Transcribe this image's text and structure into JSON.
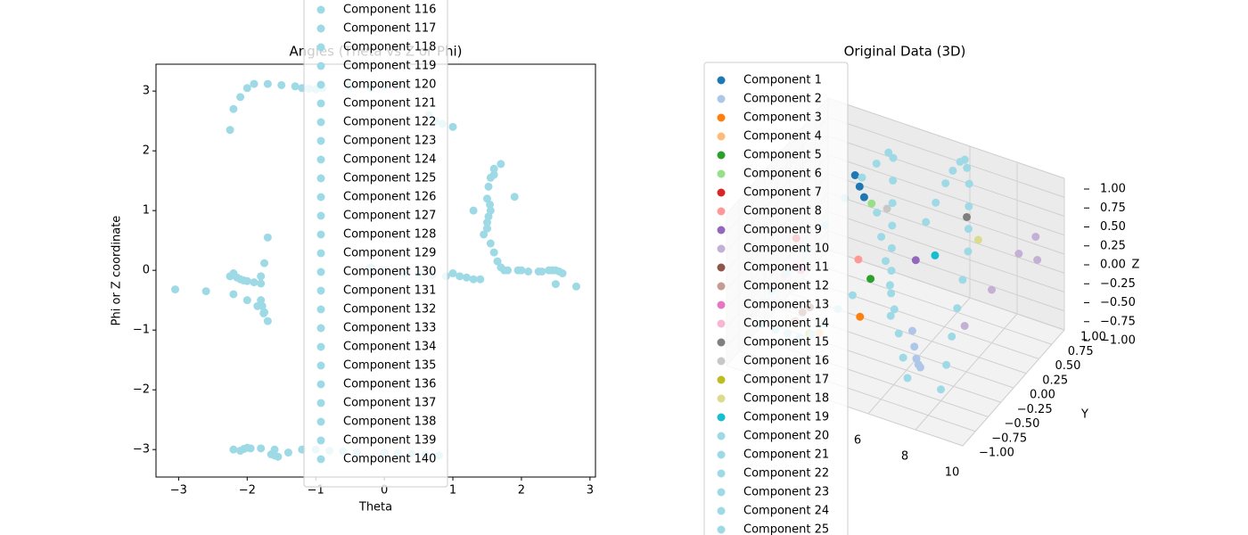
{
  "chart_data": [
    {
      "type": "scatter",
      "title": "Angles (Theta vs Z or Phi)",
      "x_label": "Theta",
      "y_label": "Phi or Z coordinate",
      "xlim": [
        -3.33,
        3.08
      ],
      "ylim": [
        -3.46,
        3.45
      ],
      "xticks": [
        {
          "value": -3,
          "label": "−3"
        },
        {
          "value": -2,
          "label": "−2"
        },
        {
          "value": -1,
          "label": "−1"
        },
        0,
        1,
        2,
        3
      ],
      "yticks": [
        {
          "value": -3,
          "label": "−3"
        },
        {
          "value": -2,
          "label": "−2"
        },
        {
          "value": -1,
          "label": "−1"
        },
        0,
        1,
        2,
        3
      ],
      "legend": "center",
      "series": [
        {
          "name": "Component 116",
          "color": "#9edae5",
          "x": [
            -2.25,
            -2.2,
            -2.1,
            -2.0,
            -1.9
          ],
          "values": [
            2.35,
            2.7,
            2.9,
            3.05,
            3.12
          ]
        },
        {
          "name": "Component 117",
          "color": "#9edae5",
          "x": [
            -1.7,
            -1.5,
            -1.3,
            -1.2,
            -0.5
          ],
          "values": [
            3.12,
            3.1,
            3.08,
            3.05,
            3.08
          ]
        },
        {
          "name": "Component 118",
          "color": "#9edae5",
          "x": [
            -2.2,
            -2.0,
            -1.8,
            -1.6,
            -1.4
          ],
          "values": [
            -3.0,
            -2.97,
            -2.98,
            -3.0,
            -3.05
          ]
        },
        {
          "name": "Component 119",
          "color": "#9edae5",
          "x": [
            -1.2,
            -1.0,
            -0.8,
            -0.6,
            -0.4
          ],
          "values": [
            -3.0,
            -3.0,
            -3.02,
            -3.03,
            -3.05
          ]
        },
        {
          "name": "Component 120",
          "color": "#9edae5",
          "x": [
            0.0,
            0.2,
            0.4,
            0.6,
            0.8
          ],
          "values": [
            -3.05,
            -3.06,
            -3.07,
            -3.08,
            -3.1
          ]
        },
        {
          "name": "Component 121",
          "color": "#9edae5",
          "x": [
            -2.25,
            -2.1,
            -2.0,
            -1.9,
            -1.8
          ],
          "values": [
            -0.1,
            -0.15,
            -0.18,
            -0.2,
            -0.22
          ]
        },
        {
          "name": "Component 122",
          "color": "#9edae5",
          "x": [
            -2.2,
            -2.0,
            -1.85,
            -1.75,
            -1.7
          ],
          "values": [
            -0.4,
            -0.5,
            -0.6,
            -0.7,
            -0.85
          ]
        },
        {
          "name": "Component 123",
          "color": "#9edae5",
          "x": [
            -3.05,
            -2.6,
            -1.7,
            -1.75,
            -1.8
          ],
          "values": [
            -0.32,
            -0.35,
            0.55,
            0.12,
            -0.1
          ]
        },
        {
          "name": "Component 124",
          "color": "#9edae5",
          "x": [
            1.5,
            1.52,
            1.55,
            1.6,
            1.7
          ],
          "values": [
            1.2,
            1.4,
            1.55,
            1.7,
            1.78
          ]
        },
        {
          "name": "Component 125",
          "color": "#9edae5",
          "x": [
            1.45,
            1.5,
            1.55,
            1.6,
            1.9
          ],
          "values": [
            0.6,
            0.8,
            1.0,
            1.6,
            1.23
          ]
        },
        {
          "name": "Component 126",
          "color": "#9edae5",
          "x": [
            1.55,
            1.6,
            1.65,
            1.7,
            1.75
          ],
          "values": [
            0.45,
            0.3,
            0.15,
            0.05,
            0.0
          ]
        },
        {
          "name": "Component 127",
          "color": "#9edae5",
          "x": [
            1.8,
            1.95,
            2.1,
            2.25,
            2.4
          ],
          "values": [
            0.0,
            0.0,
            -0.02,
            -0.02,
            0.0
          ]
        },
        {
          "name": "Component 128",
          "color": "#9edae5",
          "x": [
            2.45,
            2.5,
            2.55,
            2.6,
            2.8
          ],
          "values": [
            0.0,
            0.0,
            -0.02,
            -0.05,
            -0.27
          ]
        },
        {
          "name": "Component 129",
          "color": "#9edae5",
          "x": [
            1.0,
            1.1,
            1.2,
            1.3,
            1.4
          ],
          "values": [
            -0.05,
            -0.1,
            -0.12,
            -0.15,
            -0.15
          ]
        },
        {
          "name": "Component 130",
          "color": "#9edae5",
          "x": [
            0.65,
            0.75,
            0.85,
            1.0,
            1.3
          ],
          "values": [
            2.6,
            2.5,
            2.45,
            2.4,
            1.0
          ]
        },
        {
          "name": "Component 131",
          "color": "#9edae5",
          "x": [
            -0.2,
            0.0,
            0.2
          ],
          "values": [
            3.05,
            3.08,
            3.1
          ]
        },
        {
          "name": "Component 132",
          "color": "#9edae5",
          "x": [
            -1.1,
            -1.0,
            -0.9
          ],
          "values": [
            3.04,
            3.03,
            3.05
          ]
        },
        {
          "name": "Component 133",
          "color": "#9edae5",
          "x": [
            -1.65,
            -1.6,
            -1.55
          ],
          "values": [
            -3.08,
            -3.1,
            -3.12
          ]
        },
        {
          "name": "Component 134",
          "color": "#9edae5",
          "x": [
            -2.1,
            -2.05,
            -1.95
          ],
          "values": [
            -3.02,
            -2.99,
            -2.98
          ]
        },
        {
          "name": "Component 135",
          "color": "#9edae5",
          "x": [
            -2.2,
            -2.15,
            -2.05
          ],
          "values": [
            -0.05,
            -0.12,
            -0.17
          ]
        },
        {
          "name": "Component 136",
          "color": "#9edae5",
          "x": [
            -1.8,
            -1.78,
            -1.76
          ],
          "values": [
            -0.5,
            -0.6,
            -0.72
          ]
        },
        {
          "name": "Component 137",
          "color": "#9edae5",
          "x": [
            1.5,
            1.52,
            1.54
          ],
          "values": [
            0.7,
            0.9,
            1.1
          ]
        },
        {
          "name": "Component 138",
          "color": "#9edae5",
          "x": [
            2.0,
            2.3,
            2.5
          ],
          "values": [
            0.0,
            -0.02,
            -0.23
          ]
        },
        {
          "name": "Component 139",
          "color": "#9edae5",
          "x": [
            0.5,
            0.7,
            0.9
          ],
          "values": [
            -0.05,
            -0.08,
            -0.1
          ]
        },
        {
          "name": "Component 140",
          "color": "#9edae5",
          "x": [
            -0.2,
            0.0,
            0.3
          ],
          "values": [
            0.05,
            0.0,
            -0.05
          ]
        }
      ]
    },
    {
      "type": "scatter3d",
      "title": "Original Data (3D)",
      "y_label": "Y",
      "z_label": "Z",
      "xlim": [
        0,
        10
      ],
      "ylim": [
        -1,
        1
      ],
      "zlim": [
        -1,
        1
      ],
      "xticks": [
        6,
        8,
        10
      ],
      "yticks": [
        {
          "value": -1,
          "label": "−1.00"
        },
        {
          "value": -0.75,
          "label": "−0.75"
        },
        {
          "value": -0.5,
          "label": "−0.50"
        },
        {
          "value": -0.25,
          "label": "−0.25"
        },
        {
          "value": 0,
          "label": "0.00"
        },
        {
          "value": 0.25,
          "label": "0.25"
        },
        {
          "value": 0.5,
          "label": "0.50"
        },
        {
          "value": 0.75,
          "label": "0.75"
        },
        {
          "value": 1,
          "label": "1.00"
        }
      ],
      "zticks": [
        {
          "value": -1,
          "label": "−1.00"
        },
        {
          "value": -0.75,
          "label": "−0.75"
        },
        {
          "value": -0.5,
          "label": "−0.50"
        },
        {
          "value": -0.25,
          "label": "−0.25"
        },
        {
          "value": 0,
          "label": "0.00"
        },
        {
          "value": 0.25,
          "label": "0.25"
        },
        {
          "value": 0.5,
          "label": "0.50"
        },
        {
          "value": 0.75,
          "label": "0.75"
        },
        {
          "value": 1,
          "label": "1.00"
        }
      ],
      "legend": "upper left",
      "series": [
        {
          "name": "Component 1",
          "color": "#1f77b4",
          "x": [
            2.0,
            2.3,
            2.6
          ],
          "y": [
            0.6,
            0.55,
            0.5
          ],
          "values": [
            0.5,
            0.42,
            0.35
          ]
        },
        {
          "name": "Component 2",
          "color": "#aec7e8",
          "x": [
            5.5,
            5.8,
            6.1,
            6.4,
            6.7
          ],
          "y": [
            0.1,
            0.0,
            -0.1,
            -0.2,
            -0.3
          ],
          "values": [
            -0.8,
            -0.9,
            -0.95,
            -0.92,
            -0.85
          ]
        },
        {
          "name": "Component 3",
          "color": "#ff7f0e",
          "x": [
            3.5
          ],
          "y": [
            0.0
          ],
          "values": [
            -0.75
          ]
        },
        {
          "name": "Component 4",
          "color": "#ffbb78",
          "x": [
            2.2
          ],
          "y": [
            -0.2
          ],
          "values": [
            -0.95
          ]
        },
        {
          "name": "Component 5",
          "color": "#2ca02c",
          "x": [
            3.3
          ],
          "y": [
            0.3
          ],
          "values": [
            -0.5
          ]
        },
        {
          "name": "Component 6",
          "color": "#98df8a",
          "x": [
            2.7
          ],
          "y": [
            0.6
          ],
          "values": [
            0.2
          ]
        },
        {
          "name": "Component 7",
          "color": "#d62728",
          "x": [
            0.8
          ],
          "y": [
            0.0
          ],
          "values": [
            0.0
          ]
        },
        {
          "name": "Component 8",
          "color": "#ff9896",
          "x": [
            3.0
          ],
          "y": [
            0.2
          ],
          "values": [
            -0.2
          ]
        },
        {
          "name": "Component 9",
          "color": "#9467bd",
          "x": [
            5.0
          ],
          "y": [
            0.4
          ],
          "values": [
            -0.15
          ]
        },
        {
          "name": "Component 10",
          "color": "#c5b0d5",
          "x": [
            7.5,
            8.0,
            8.5,
            9.0,
            9.5
          ],
          "y": [
            0.2,
            0.5,
            0.8,
            0.9,
            0.7
          ],
          "values": [
            -0.6,
            -0.3,
            0.0,
            0.2,
            0.1
          ]
        },
        {
          "name": "Component 11",
          "color": "#8c564b",
          "x": [
            1.5,
            1.7
          ],
          "y": [
            -0.2,
            -0.15
          ],
          "values": [
            -0.75,
            -0.7
          ]
        },
        {
          "name": "Component 12",
          "color": "#c49c94",
          "x": [
            1.4
          ],
          "y": [
            -0.3
          ],
          "values": [
            -0.8
          ]
        },
        {
          "name": "Component 13",
          "color": "#e377c2",
          "x": [
            1.2
          ],
          "y": [
            -0.1
          ],
          "values": [
            -0.3
          ]
        },
        {
          "name": "Component 14",
          "color": "#f7b6d2",
          "x": [
            0.2,
            0.5,
            0.8
          ],
          "y": [
            -0.2,
            -0.1,
            0.0
          ],
          "values": [
            -0.55,
            -0.45,
            -0.35
          ]
        },
        {
          "name": "Component 15",
          "color": "#7f7f7f",
          "x": [
            6.3
          ],
          "y": [
            0.8
          ],
          "values": [
            0.25
          ]
        },
        {
          "name": "Component 16",
          "color": "#c7c7c7",
          "x": [
            4.0
          ],
          "y": [
            0.3
          ],
          "values": [
            0.5
          ]
        },
        {
          "name": "Component 17",
          "color": "#bcbd22",
          "x": [
            2.0
          ],
          "y": [
            -0.3
          ],
          "values": [
            -0.9
          ]
        },
        {
          "name": "Component 18",
          "color": "#dbdb8d",
          "x": [
            7.0
          ],
          "y": [
            0.7
          ],
          "values": [
            0.1
          ]
        },
        {
          "name": "Component 19",
          "color": "#17becf",
          "x": [
            5.6
          ],
          "y": [
            0.5
          ],
          "values": [
            -0.1
          ]
        },
        {
          "name": "Component 20",
          "color": "#9edae5",
          "x": [
            0.4,
            0.8,
            1.2,
            1.6,
            2.0,
            2.4,
            2.8,
            3.2
          ],
          "y": [
            -0.3,
            -0.2,
            0.0,
            0.2,
            0.4,
            0.55,
            0.65,
            0.7
          ],
          "values": [
            -0.5,
            -0.3,
            -0.1,
            0.1,
            0.35,
            0.55,
            0.7,
            0.85
          ]
        },
        {
          "name": "Component 21",
          "color": "#9edae5",
          "x": [
            3.4,
            3.6,
            3.8,
            4.0,
            4.2,
            4.4,
            4.6,
            4.8
          ],
          "y": [
            0.7,
            0.6,
            0.5,
            0.4,
            0.3,
            0.2,
            0.1,
            0.0
          ],
          "values": [
            0.8,
            0.6,
            0.4,
            0.2,
            0.0,
            -0.2,
            -0.4,
            -0.6
          ]
        },
        {
          "name": "Component 22",
          "color": "#9edae5",
          "x": [
            5.0,
            5.2,
            5.4,
            5.6,
            5.8,
            6.0,
            6.2,
            6.4
          ],
          "y": [
            0.6,
            0.7,
            0.8,
            0.85,
            0.9,
            0.9,
            0.85,
            0.8
          ],
          "values": [
            0.2,
            0.4,
            0.6,
            0.75,
            0.85,
            0.9,
            0.85,
            0.7
          ]
        },
        {
          "name": "Component 23",
          "color": "#9edae5",
          "x": [
            6.6,
            6.8,
            7.0,
            7.2,
            7.4,
            7.6,
            7.8,
            8.0
          ],
          "y": [
            0.7,
            0.6,
            0.5,
            0.3,
            0.1,
            -0.1,
            -0.3,
            -0.5
          ],
          "values": [
            0.5,
            0.3,
            0.1,
            -0.1,
            -0.3,
            -0.5,
            -0.7,
            -0.85
          ]
        },
        {
          "name": "Component 24",
          "color": "#9edae5",
          "x": [
            0.6,
            1.0,
            1.4,
            1.8,
            2.2,
            2.6,
            3.0,
            3.4
          ],
          "y": [
            -0.6,
            -0.5,
            -0.45,
            -0.4,
            -0.35,
            -0.3,
            -0.2,
            -0.1
          ],
          "values": [
            -0.7,
            -0.8,
            -0.85,
            -0.9,
            -0.85,
            -0.7,
            -0.55,
            -0.4
          ]
        },
        {
          "name": "Component 25",
          "color": "#9edae5",
          "x": [
            4.0,
            4.4,
            4.8,
            5.2,
            5.6,
            6.0,
            6.4,
            6.8
          ],
          "y": [
            0.1,
            0.0,
            -0.1,
            -0.2,
            -0.3,
            -0.4,
            -0.5,
            -0.6
          ],
          "values": [
            0.6,
            0.4,
            0.2,
            0.0,
            -0.2,
            -0.4,
            -0.6,
            -0.75
          ]
        }
      ]
    }
  ]
}
